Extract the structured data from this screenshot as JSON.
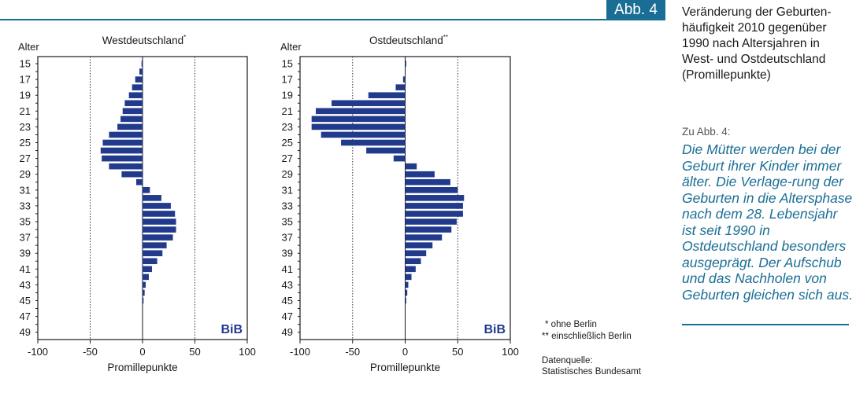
{
  "figure_label": "Abb. 4",
  "caption": "Veränderung der Geburten-häufigkeit 2010 gegenüber 1990 nach Altersjahren in West- und Ostdeutschland (Promillepunkte)",
  "note_label": "Zu Abb. 4:",
  "note_text": "Die Mütter werden bei der Geburt ihrer Kinder immer älter. Die Verlage-rung der Geburten in die Altersphase nach dem 28. Lebensjahr ist seit 1990 in Ostdeutschland besonders ausgeprägt. Der Aufschub und das Nachholen von Geburten gleichen sich aus.",
  "footnotes": {
    "west": "* ohne Berlin",
    "east": "** einschließlich Berlin"
  },
  "source": {
    "label": "Datenquelle:",
    "name": "Statistisches Bundesamt"
  },
  "colors": {
    "accent": "#1a6e96",
    "bar": "#223a8c",
    "note_text": "#1a6e96"
  },
  "chart_data": [
    {
      "type": "bar",
      "orientation": "horizontal",
      "title": "Westdeutschland",
      "title_marker": "*",
      "ylabel": "Alter",
      "xlabel": "Promillepunkte",
      "watermark": "BiB",
      "xlim": [
        -100,
        100
      ],
      "xticks": [
        -100,
        -50,
        0,
        50,
        100
      ],
      "dotted_gridlines": [
        -50,
        50
      ],
      "ytick_labels": [
        15,
        17,
        19,
        21,
        23,
        25,
        27,
        29,
        31,
        33,
        35,
        37,
        39,
        41,
        43,
        45,
        47,
        49
      ],
      "ages": [
        15,
        16,
        17,
        18,
        19,
        20,
        21,
        22,
        23,
        24,
        25,
        26,
        27,
        28,
        29,
        30,
        31,
        32,
        33,
        34,
        35,
        36,
        37,
        38,
        39,
        40,
        41,
        42,
        43,
        44,
        45,
        46,
        47,
        48,
        49
      ],
      "values": [
        -1,
        -3,
        -7,
        -10,
        -13,
        -17,
        -19,
        -21,
        -24,
        -32,
        -38,
        -40,
        -39,
        -32,
        -20,
        -6,
        7,
        18,
        27,
        31,
        32,
        32,
        29,
        23,
        19,
        14,
        9,
        6,
        3,
        2,
        1,
        0,
        0,
        0,
        0
      ]
    },
    {
      "type": "bar",
      "orientation": "horizontal",
      "title": "Ostdeutschland",
      "title_marker": "**",
      "ylabel": "Alter",
      "xlabel": "Promillepunkte",
      "watermark": "BiB",
      "xlim": [
        -100,
        100
      ],
      "xticks": [
        -100,
        -50,
        0,
        50,
        100
      ],
      "dotted_gridlines": [
        -50,
        50
      ],
      "ytick_labels": [
        15,
        17,
        19,
        21,
        23,
        25,
        27,
        29,
        31,
        33,
        35,
        37,
        39,
        41,
        43,
        45,
        47,
        49
      ],
      "ages": [
        15,
        16,
        17,
        18,
        19,
        20,
        21,
        22,
        23,
        24,
        25,
        26,
        27,
        28,
        29,
        30,
        31,
        32,
        33,
        34,
        35,
        36,
        37,
        38,
        39,
        40,
        41,
        42,
        43,
        44,
        45,
        46,
        47,
        48,
        49
      ],
      "values": [
        1,
        0,
        -2,
        -9,
        -35,
        -70,
        -85,
        -89,
        -89,
        -80,
        -61,
        -37,
        -11,
        11,
        28,
        43,
        50,
        56,
        55,
        55,
        49,
        44,
        35,
        26,
        20,
        15,
        10,
        6,
        3,
        2,
        1,
        0,
        0,
        0,
        0
      ]
    }
  ]
}
